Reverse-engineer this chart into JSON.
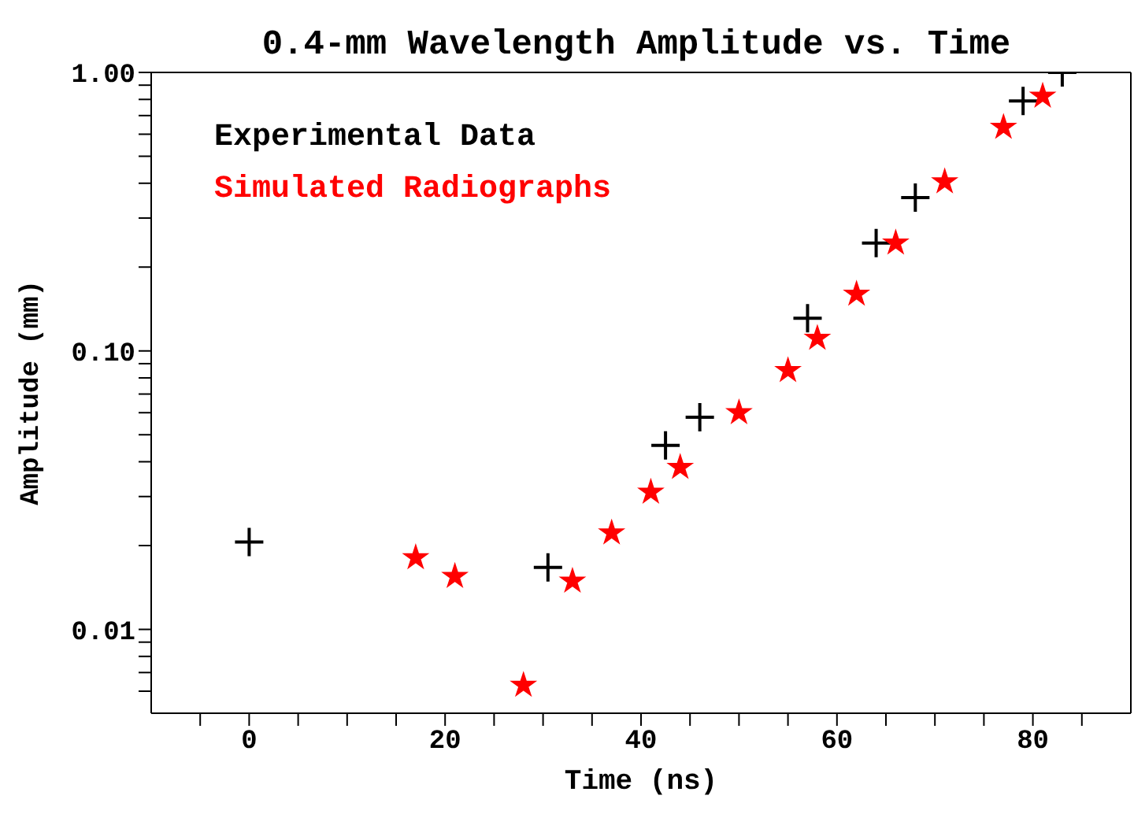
{
  "chart_data": {
    "type": "scatter",
    "title": "0.4-mm Wavelength Amplitude vs. Time",
    "xlabel": "Time (ns)",
    "ylabel": "Amplitude (mm)",
    "series": [
      {
        "name": "Experimental Data",
        "color": "#000000",
        "marker": "cross",
        "x": [
          0,
          30.5,
          42.5,
          46,
          57,
          64,
          68,
          79,
          83
        ],
        "values": [
          0.0206,
          0.0167,
          0.0458,
          0.0578,
          0.131,
          0.244,
          0.355,
          0.79,
          1.0
        ]
      },
      {
        "name": "Simulated Radiographs",
        "color": "#ff0000",
        "marker": "star",
        "x": [
          17,
          21,
          28,
          33,
          37,
          41,
          44,
          50,
          55,
          58,
          62,
          66,
          71,
          77,
          81
        ],
        "values": [
          0.0181,
          0.0155,
          0.0063,
          0.0149,
          0.0222,
          0.0311,
          0.0382,
          0.06,
          0.085,
          0.111,
          0.16,
          0.244,
          0.405,
          0.635,
          0.822
        ]
      }
    ],
    "log": "y",
    "xlim": [
      -10,
      90
    ],
    "ylim": [
      0.005,
      1
    ],
    "xticks": [
      {
        "value": -5,
        "label": null
      },
      0,
      {
        "value": 5,
        "label": null
      },
      {
        "value": 10,
        "label": null
      },
      {
        "value": 15,
        "label": null
      },
      20,
      {
        "value": 25,
        "label": null
      },
      {
        "value": 30,
        "label": null
      },
      {
        "value": 35,
        "label": null
      },
      40,
      {
        "value": 45,
        "label": null
      },
      {
        "value": 50,
        "label": null
      },
      {
        "value": 55,
        "label": null
      },
      60,
      {
        "value": 65,
        "label": null
      },
      {
        "value": 70,
        "label": null
      },
      {
        "value": 75,
        "label": null
      },
      80,
      {
        "value": 85,
        "label": null
      }
    ],
    "yticks": [
      {
        "value": 0.006,
        "label": null
      },
      {
        "value": 0.007,
        "label": null
      },
      {
        "value": 0.008,
        "label": null
      },
      {
        "value": 0.009,
        "label": null
      },
      {
        "value": 0.01,
        "label": "0.01"
      },
      {
        "value": 0.02,
        "label": null
      },
      {
        "value": 0.03,
        "label": null
      },
      {
        "value": 0.04,
        "label": null
      },
      {
        "value": 0.05,
        "label": null
      },
      {
        "value": 0.06,
        "label": null
      },
      {
        "value": 0.07,
        "label": null
      },
      {
        "value": 0.08,
        "label": null
      },
      {
        "value": 0.09,
        "label": null
      },
      {
        "value": 0.1,
        "label": "0.10"
      },
      {
        "value": 0.2,
        "label": null
      },
      {
        "value": 0.3,
        "label": null
      },
      {
        "value": 0.4,
        "label": null
      },
      {
        "value": 0.5,
        "label": null
      },
      {
        "value": 0.6,
        "label": null
      },
      {
        "value": 0.7,
        "label": null
      },
      {
        "value": 0.8,
        "label": null
      },
      {
        "value": 0.9,
        "label": null
      },
      {
        "value": 1,
        "label": "1.00"
      }
    ],
    "legend": "top left",
    "grid": false
  }
}
